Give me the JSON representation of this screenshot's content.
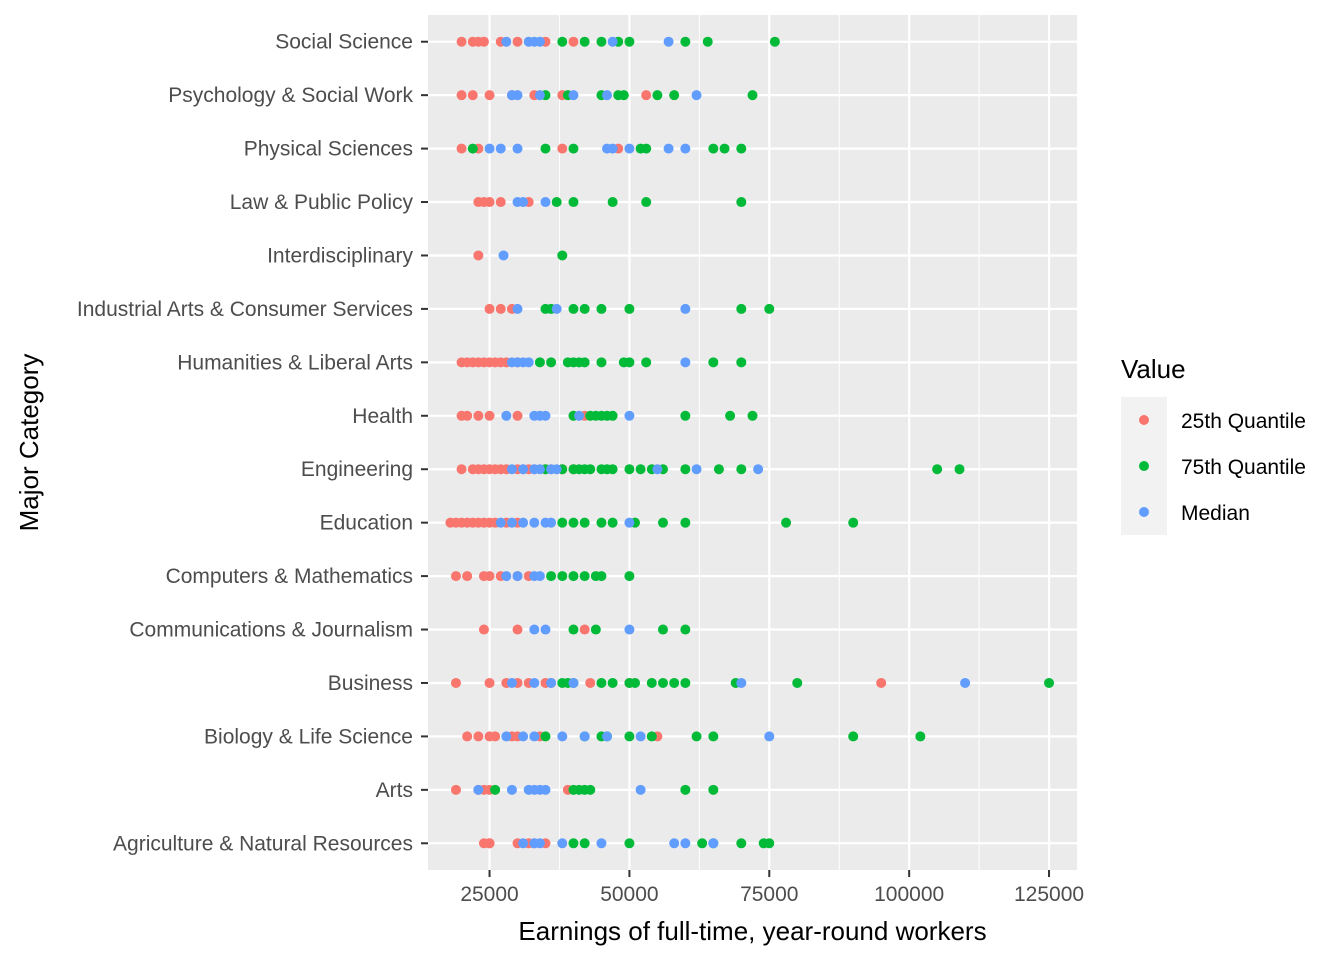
{
  "chart_data": {
    "type": "scatter",
    "xlabel": "Earnings of full-time, year-round workers",
    "ylabel": "Major Category",
    "xlim": [
      14000,
      130000
    ],
    "x_ticks": [
      25000,
      50000,
      75000,
      100000,
      125000
    ],
    "x_tick_labels": [
      "25000",
      "50000",
      "75000",
      "100000",
      "125000"
    ],
    "grid": true,
    "legend": {
      "title": "Value",
      "position": "right",
      "entries": [
        "25th Quantile",
        "75th Quantile",
        "Median"
      ]
    },
    "categories": [
      "Agriculture & Natural Resources",
      "Arts",
      "Biology & Life Science",
      "Business",
      "Communications & Journalism",
      "Computers & Mathematics",
      "Education",
      "Engineering",
      "Health",
      "Humanities & Liberal Arts",
      "Industrial Arts & Consumer Services",
      "Interdisciplinary",
      "Law & Public Policy",
      "Physical Sciences",
      "Psychology & Social Work",
      "Social Science"
    ],
    "series": [
      {
        "name": "25th Quantile",
        "color": "#F8766D",
        "points": {
          "Agriculture & Natural Resources": [
            24000,
            25000,
            25000,
            30000,
            32000,
            33000,
            35000
          ],
          "Arts": [
            19000,
            23000,
            24000,
            25000,
            39000
          ],
          "Biology & Life Science": [
            21000,
            23000,
            25000,
            26000,
            29000,
            30000,
            34000,
            55000
          ],
          "Business": [
            19000,
            25000,
            28000,
            30000,
            32000,
            35000,
            36000,
            43000,
            50000,
            95000
          ],
          "Communications & Journalism": [
            24000,
            30000,
            42000
          ],
          "Computers & Mathematics": [
            19000,
            21000,
            24000,
            25000,
            27000,
            30000,
            32000
          ],
          "Education": [
            18000,
            19000,
            20000,
            21000,
            22000,
            23000,
            24000,
            25000,
            26000,
            28000,
            30000
          ],
          "Engineering": [
            20000,
            22000,
            23000,
            24000,
            25000,
            26000,
            27000,
            28000,
            30000,
            31000,
            32000,
            33000,
            35000,
            36000,
            38000,
            40000
          ],
          "Health": [
            20000,
            21000,
            23000,
            25000,
            30000,
            42000
          ],
          "Humanities & Liberal Arts": [
            20000,
            21000,
            22000,
            23000,
            24000,
            25000,
            26000,
            27000,
            28000,
            30000
          ],
          "Industrial Arts & Consumer Services": [
            25000,
            27000,
            29000
          ],
          "Interdisciplinary": [
            23000
          ],
          "Law & Public Policy": [
            23000,
            24000,
            25000,
            27000,
            32000
          ],
          "Physical Sciences": [
            20000,
            23000,
            38000,
            48000
          ],
          "Psychology & Social Work": [
            20000,
            22000,
            25000,
            29000,
            33000,
            38000,
            53000
          ],
          "Social Science": [
            20000,
            22000,
            23000,
            24000,
            27000,
            30000,
            35000,
            40000
          ]
        }
      },
      {
        "name": "75th Quantile",
        "color": "#00BA38",
        "points": {
          "Agriculture & Natural Resources": [
            40000,
            42000,
            50000,
            63000,
            65000,
            70000,
            74000,
            75000
          ],
          "Arts": [
            26000,
            40000,
            41000,
            42000,
            43000,
            60000,
            65000
          ],
          "Biology & Life Science": [
            35000,
            42000,
            45000,
            46000,
            50000,
            54000,
            62000,
            65000,
            90000,
            102000
          ],
          "Business": [
            38000,
            39000,
            40000,
            45000,
            47000,
            50000,
            51000,
            54000,
            56000,
            58000,
            60000,
            69000,
            80000,
            125000
          ],
          "Communications & Journalism": [
            40000,
            44000,
            56000,
            60000
          ],
          "Computers & Mathematics": [
            36000,
            38000,
            40000,
            42000,
            44000,
            45000,
            50000
          ],
          "Education": [
            38000,
            40000,
            42000,
            45000,
            47000,
            51000,
            56000,
            60000,
            78000,
            90000
          ],
          "Engineering": [
            35000,
            38000,
            40000,
            41000,
            42000,
            43000,
            45000,
            46000,
            47000,
            50000,
            52000,
            54000,
            56000,
            60000,
            66000,
            70000,
            105000,
            109000
          ],
          "Health": [
            40000,
            43000,
            44000,
            45000,
            46000,
            47000,
            60000,
            68000,
            72000
          ],
          "Humanities & Liberal Arts": [
            34000,
            36000,
            39000,
            40000,
            41000,
            42000,
            45000,
            49000,
            50000,
            53000,
            65000,
            70000
          ],
          "Industrial Arts & Consumer Services": [
            35000,
            36000,
            40000,
            42000,
            45000,
            50000,
            70000,
            75000
          ],
          "Interdisciplinary": [
            38000
          ],
          "Law & Public Policy": [
            37000,
            40000,
            47000,
            53000,
            70000
          ],
          "Physical Sciences": [
            22000,
            35000,
            40000,
            52000,
            53000,
            65000,
            67000,
            70000
          ],
          "Psychology & Social Work": [
            35000,
            39000,
            45000,
            48000,
            49000,
            55000,
            58000,
            72000
          ],
          "Social Science": [
            38000,
            42000,
            45000,
            48000,
            50000,
            60000,
            64000,
            76000
          ]
        }
      },
      {
        "name": "Median",
        "color": "#619CFF",
        "points": {
          "Agriculture & Natural Resources": [
            31000,
            33000,
            34000,
            38000,
            45000,
            58000,
            60000,
            65000
          ],
          "Arts": [
            23000,
            29000,
            32000,
            33000,
            34000,
            35000,
            52000
          ],
          "Biology & Life Science": [
            28000,
            31000,
            33000,
            38000,
            42000,
            46000,
            52000,
            75000
          ],
          "Business": [
            29000,
            33000,
            36000,
            40000,
            70000,
            110000
          ],
          "Communications & Journalism": [
            33000,
            35000,
            50000
          ],
          "Computers & Mathematics": [
            28000,
            30000,
            33000,
            34000
          ],
          "Education": [
            27000,
            29000,
            31000,
            33000,
            35000,
            36000,
            50000
          ],
          "Engineering": [
            29000,
            31000,
            33000,
            34000,
            36000,
            37000,
            55000,
            62000,
            73000
          ],
          "Health": [
            28000,
            33000,
            34000,
            35000,
            41000,
            50000
          ],
          "Humanities & Liberal Arts": [
            29000,
            30000,
            31000,
            32000,
            60000
          ],
          "Industrial Arts & Consumer Services": [
            30000,
            37000,
            60000
          ],
          "Interdisciplinary": [
            27500
          ],
          "Law & Public Policy": [
            30000,
            31000,
            35000
          ],
          "Physical Sciences": [
            25000,
            27000,
            30000,
            46000,
            47000,
            50000,
            57000,
            60000
          ],
          "Psychology & Social Work": [
            29000,
            30000,
            34000,
            40000,
            46000,
            62000
          ],
          "Social Science": [
            28000,
            32000,
            33000,
            34000,
            47000,
            57000
          ]
        }
      }
    ]
  }
}
